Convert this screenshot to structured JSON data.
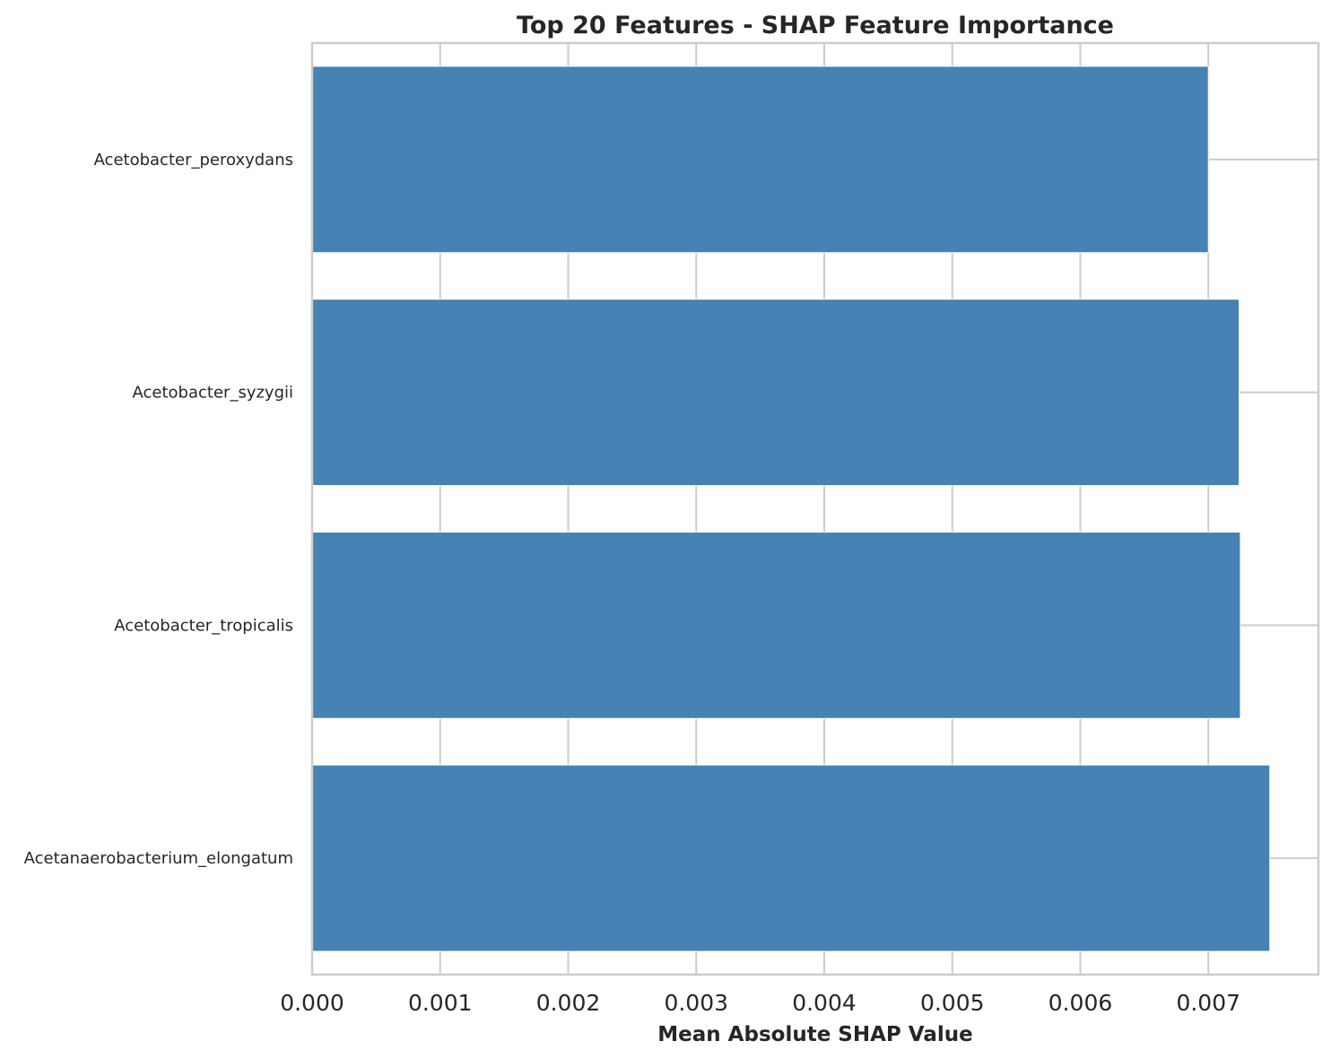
{
  "chart_data": {
    "type": "bar",
    "orientation": "horizontal",
    "title": "Top 20 Features - SHAP Feature Importance",
    "xlabel": "Mean Absolute SHAP Value",
    "ylabel": "",
    "categories": [
      "Acetobacter_peroxydans",
      "Acetobacter_syzygii",
      "Acetobacter_tropicalis",
      "Acetanaerobacterium_elongatum"
    ],
    "values": [
      0.007,
      0.00724,
      0.00725,
      0.00748
    ],
    "xlim": [
      0.0,
      0.00786
    ],
    "xticks": [
      0.0,
      0.001,
      0.002,
      0.003,
      0.004,
      0.005,
      0.006,
      0.007
    ],
    "xtick_labels": [
      "0.000",
      "0.001",
      "0.002",
      "0.003",
      "0.004",
      "0.005",
      "0.006",
      "0.007"
    ],
    "grid": true,
    "colors": {
      "bar": "#4682b4",
      "grid": "#cccccc",
      "spine": "#cccccc",
      "text": "#262626"
    }
  }
}
